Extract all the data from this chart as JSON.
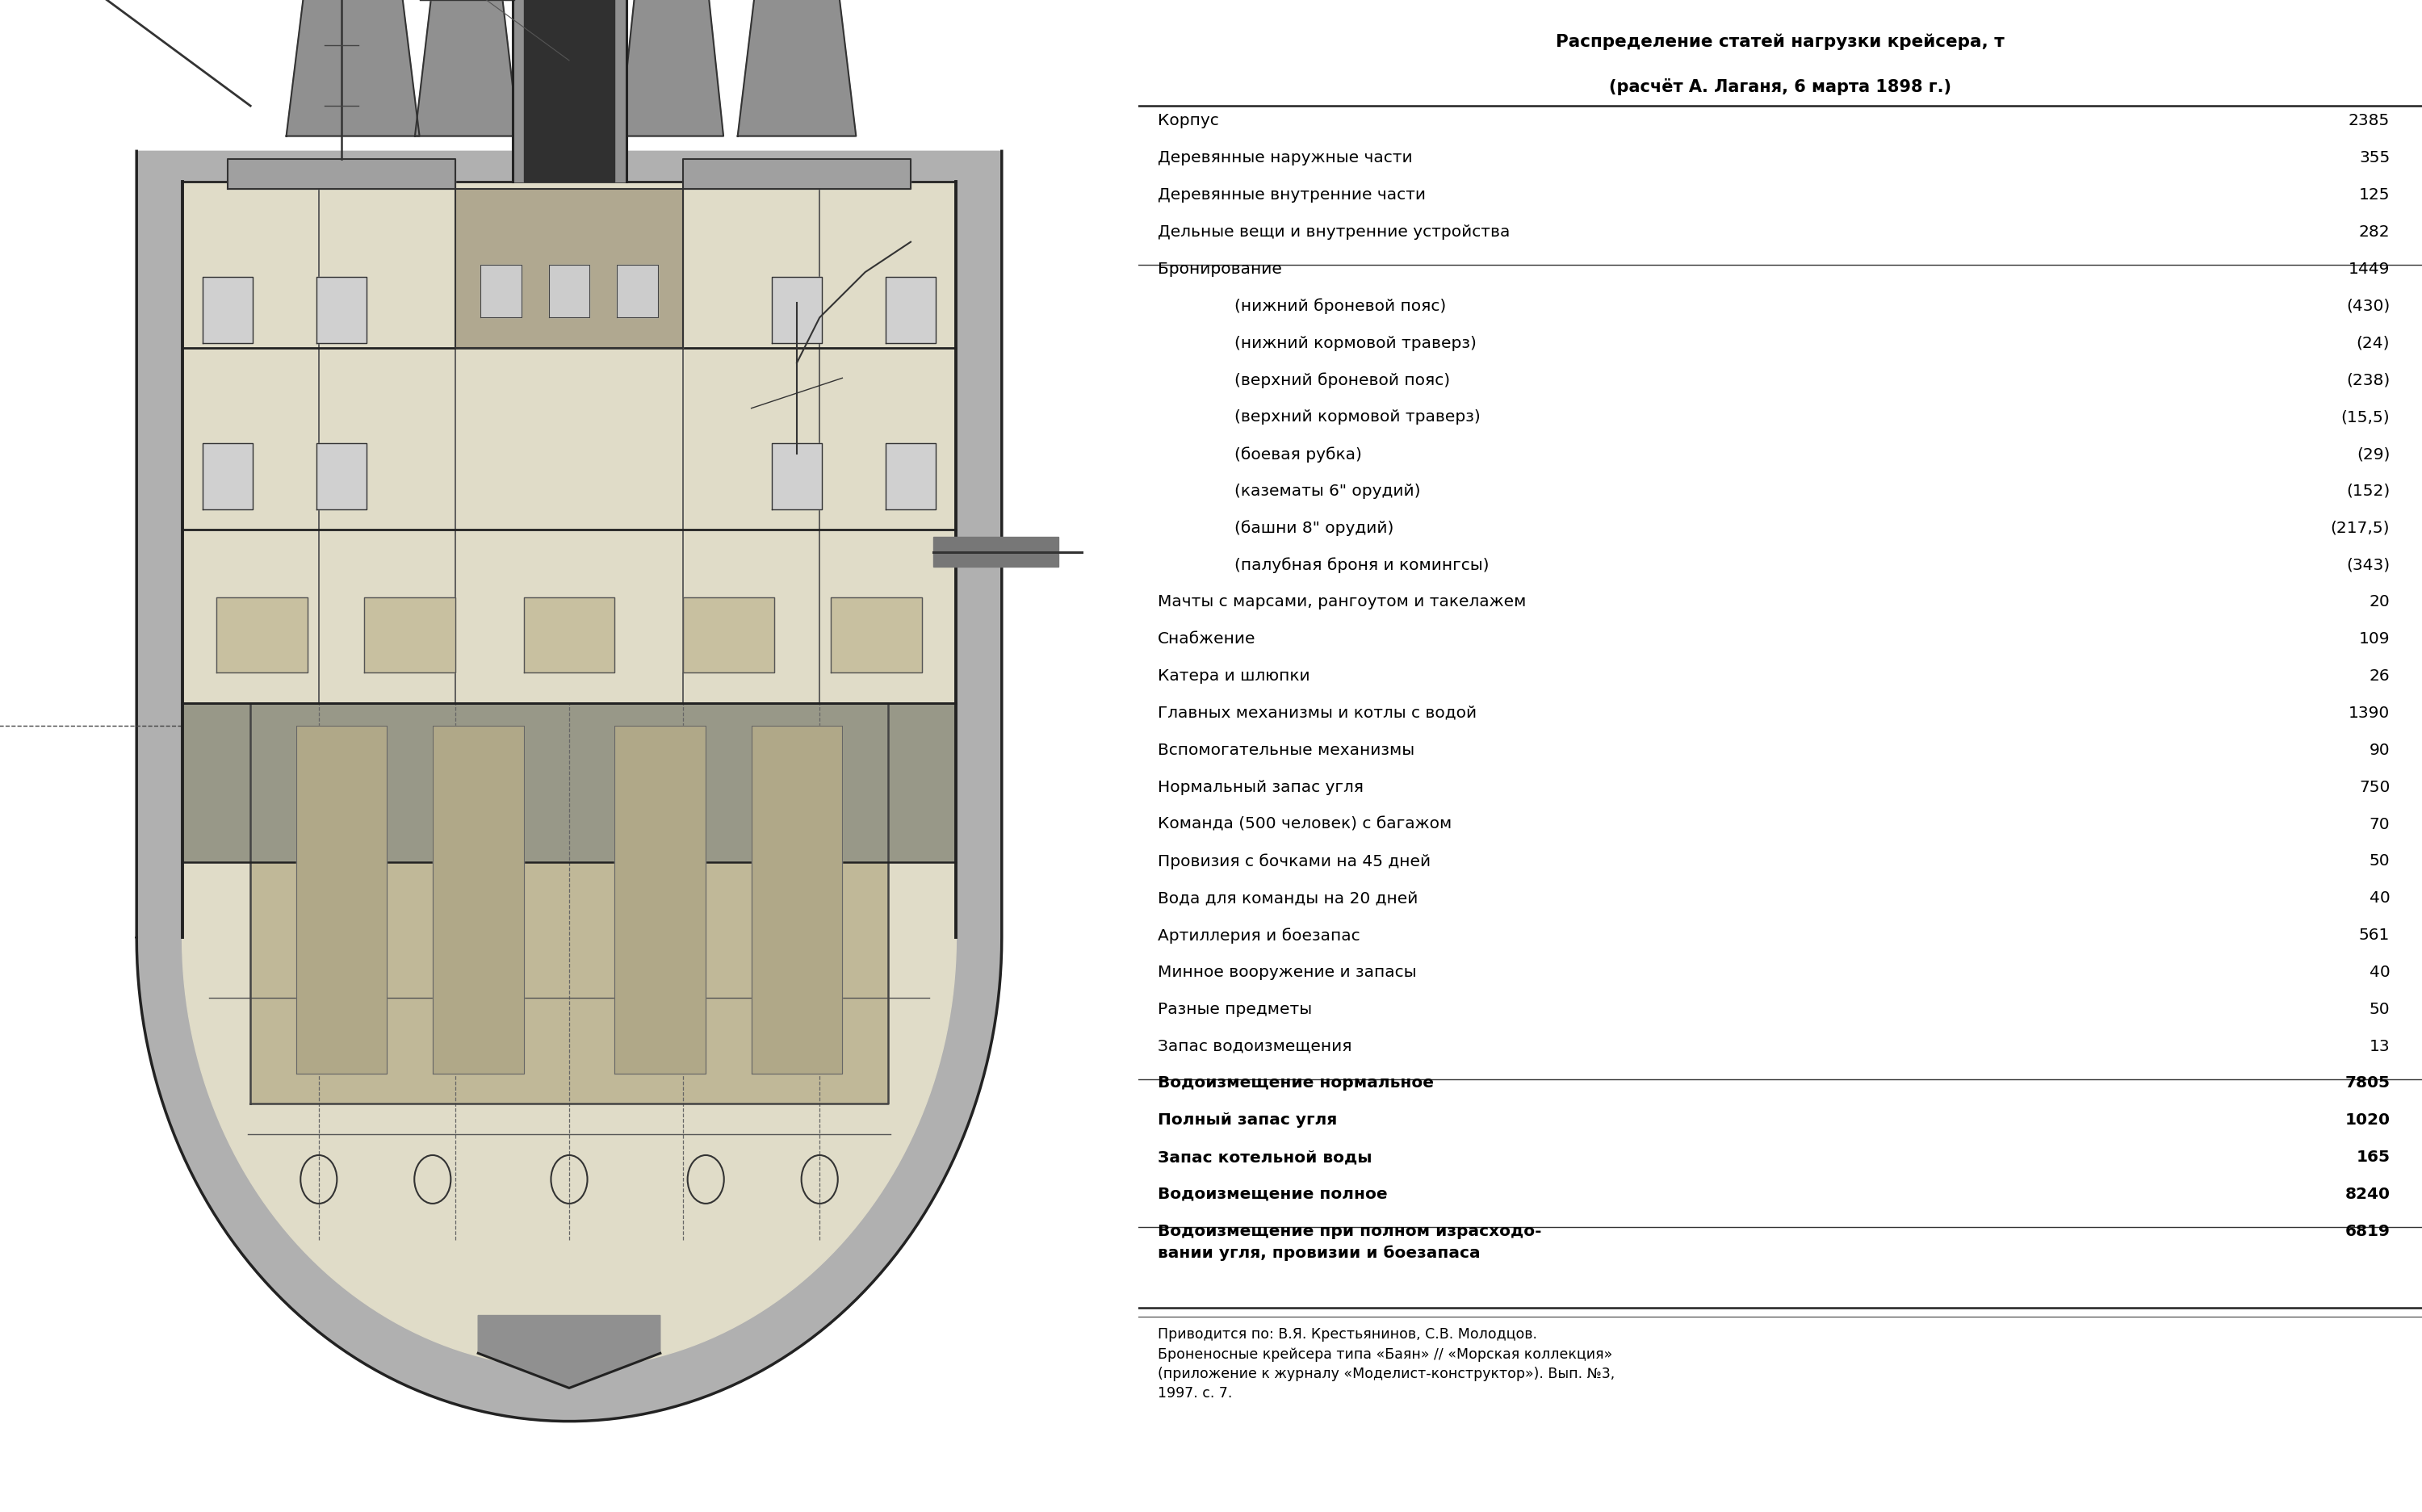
{
  "title_line1": "Распределение статей нагрузки крейсера, т",
  "title_line2": "(расчёт А. Лаганя, 6 марта 1898 г.)",
  "table_rows": [
    [
      "Корпус",
      "2385"
    ],
    [
      "Деревянные наружные части",
      "355"
    ],
    [
      "Деревянные внутренние части",
      "125"
    ],
    [
      "Дельные вещи и внутренние устройства",
      "282"
    ],
    [
      "Бронирование",
      "1449"
    ],
    [
      "    (нижний броневой пояс)",
      "(430)"
    ],
    [
      "    (нижний кормовой траверз)",
      "(24)"
    ],
    [
      "    (верхний броневой пояс)",
      "(238)"
    ],
    [
      "    (верхний кормовой траверз)",
      "(15,5)"
    ],
    [
      "    (боевая рубка)",
      "(29)"
    ],
    [
      "    (казематы 6\" орудий)",
      "(152)"
    ],
    [
      "    (башни 8\" орудий)",
      "(217,5)"
    ],
    [
      "    (палубная броня и комингсы)",
      "(343)"
    ],
    [
      "Мачты с марсами, рангоутом и такелажем",
      "20"
    ],
    [
      "Снабжение",
      "109"
    ],
    [
      "Катера и шлюпки",
      "26"
    ],
    [
      "Главных механизмы и котлы с водой",
      "1390"
    ],
    [
      "Вспомогательные механизмы",
      "90"
    ],
    [
      "Нормальный запас угля",
      "750"
    ],
    [
      "Команда (500 человек) с багажом",
      "70"
    ],
    [
      "Провизия с бочками на 45 дней",
      "50"
    ],
    [
      "Вода для команды на 20 дней",
      "40"
    ],
    [
      "Артиллерия и боезапас",
      "561"
    ],
    [
      "Минное вооружение и запасы",
      "40"
    ],
    [
      "Разные предметы",
      "50"
    ],
    [
      "Запас водоизмещения",
      "13"
    ],
    [
      "Водоизмещение нормальное",
      "7805"
    ],
    [
      "Полный запас угля",
      "1020"
    ],
    [
      "Запас котельной воды",
      "165"
    ],
    [
      "Водоизмещение полное",
      "8240"
    ],
    [
      "Водоизмещение при полном израсходо-\nвании угля, провизии и боезапаса",
      "6819"
    ]
  ],
  "footnote": "Приводится по: В.Я. Крестьянинов, С.В. Молодцов.\nБроненосные крейсера типа «Баян» // «Морская коллекция»\n(приложение к журналу «Моделист-конструктор»). Вып. №3,\n1997. с. 7.",
  "bg_color": "#ffffff",
  "text_color": "#000000",
  "table_font_size": 14.5,
  "title_font_size": 15.5,
  "footnote_font_size": 12.5,
  "separator_rows": [
    4,
    26,
    30
  ],
  "bold_rows": [
    26,
    27,
    28,
    29,
    30
  ]
}
